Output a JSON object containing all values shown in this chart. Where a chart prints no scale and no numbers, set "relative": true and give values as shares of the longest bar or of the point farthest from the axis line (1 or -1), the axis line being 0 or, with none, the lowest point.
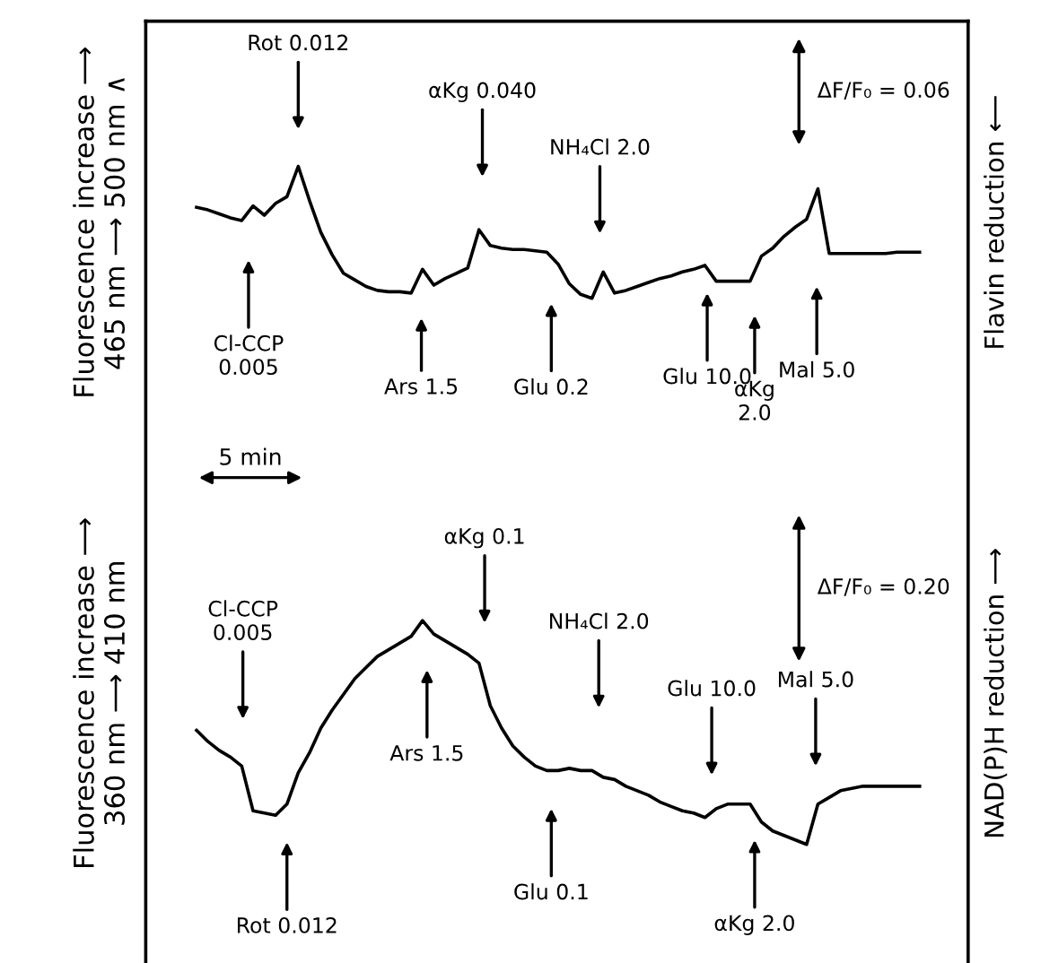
{
  "chart_data": [
    {
      "type": "line",
      "relative": true,
      "tick_labels": false,
      "ylabel": "Fluorescence increase ⟶\n465 nm ⟶ 500 nm ∧",
      "y2label": "Flavin reduction ⟵",
      "categories": [
        null,
        null,
        null,
        null,
        null,
        null,
        null,
        null,
        null,
        null,
        null,
        null,
        null,
        null,
        null,
        null,
        null,
        null,
        null,
        null,
        null,
        null,
        null,
        null,
        null,
        null,
        null,
        null,
        null,
        null,
        null,
        null,
        null,
        null,
        null,
        null,
        null,
        null,
        null,
        null,
        null,
        null,
        null,
        null,
        null,
        null,
        null,
        null,
        null,
        null,
        null,
        null,
        null,
        null,
        null,
        null,
        null,
        null,
        null,
        null,
        null,
        null,
        null,
        null,
        null
      ],
      "series": [
        {
          "color": "#000000",
          "values": [
            0.69,
            0.67,
            0.64,
            0.61,
            0.59,
            0.7,
            0.63,
            0.72,
            0.77,
            1,
            0.74,
            0.5,
            0.33,
            0.19,
            0.14,
            0.09,
            0.06,
            0.05,
            0.05,
            0.04,
            0.22,
            0.1,
            0.15,
            0.19,
            0.23,
            0.52,
            0.4,
            0.38,
            0.37,
            0.37,
            0.36,
            0.35,
            0.26,
            0.11,
            0.03,
            0,
            0.2,
            0.04,
            0.06,
            0.09,
            0.12,
            0.15,
            0.17,
            0.2,
            0.22,
            0.25,
            0.13,
            0.13,
            0.13,
            0.13,
            0.32,
            0.38,
            0.47,
            0.54,
            0.6,
            0.83,
            0.34,
            0.34,
            0.34,
            0.34,
            0.34,
            0.34,
            0.35,
            0.35,
            0.35
          ]
        }
      ],
      "annotations": [
        "Rot 0.012",
        "αKg 0.040",
        "NH₄Cl 2.0",
        "Cl-CCP\n0.005",
        "Ars 1.5",
        "Glu 0.2",
        "Glu 10.0",
        "αKg\n2.0",
        "Mal 5.0",
        "ΔF/F₀ = 0.06"
      ]
    },
    {
      "type": "line",
      "relative": true,
      "tick_labels": false,
      "ylabel": "Fluorescence increase ⟶\n360 nm ⟶ 410 nm",
      "y2label": "NAD(P)H reduction ⟶",
      "categories": [
        null,
        null,
        null,
        null,
        null,
        null,
        null,
        null,
        null,
        null,
        null,
        null,
        null,
        null,
        null,
        null,
        null,
        null,
        null,
        null,
        null,
        null,
        null,
        null,
        null,
        null,
        null,
        null,
        null,
        null,
        null,
        null,
        null,
        null,
        null,
        null,
        null,
        null,
        null,
        null,
        null,
        null,
        null,
        null,
        null,
        null,
        null,
        null,
        null,
        null,
        null,
        null,
        null,
        null,
        null,
        null,
        null,
        null,
        null,
        null,
        null,
        null,
        null,
        null,
        null
      ],
      "series": [
        {
          "color": "#000000",
          "values": [
            0.51,
            0.46,
            0.42,
            0.39,
            0.35,
            0.15,
            0.14,
            0.13,
            0.18,
            0.32,
            0.41,
            0.52,
            0.6,
            0.67,
            0.74,
            0.79,
            0.84,
            0.87,
            0.9,
            0.93,
            1,
            0.94,
            0.91,
            0.88,
            0.85,
            0.81,
            0.62,
            0.52,
            0.44,
            0.39,
            0.35,
            0.33,
            0.33,
            0.34,
            0.33,
            0.33,
            0.3,
            0.29,
            0.26,
            0.24,
            0.22,
            0.19,
            0.17,
            0.15,
            0.14,
            0.12,
            0.16,
            0.18,
            0.18,
            0.18,
            0.1,
            0.06,
            0.04,
            0.02,
            0,
            0.18,
            0.21,
            0.24,
            0.25,
            0.26,
            0.26,
            0.26,
            0.26,
            0.26,
            0.26
          ]
        }
      ],
      "annotations": [
        "Cl-CCP\n0.005",
        "αKg 0.1",
        "NH₄Cl 2.0",
        "Glu 10.0",
        "Mal 5.0",
        "Ars 1.5",
        "Rot 0.012",
        "Glu 0.1",
        "αKg 2.0",
        "ΔF/F₀ = 0.20",
        "5 min"
      ]
    }
  ]
}
